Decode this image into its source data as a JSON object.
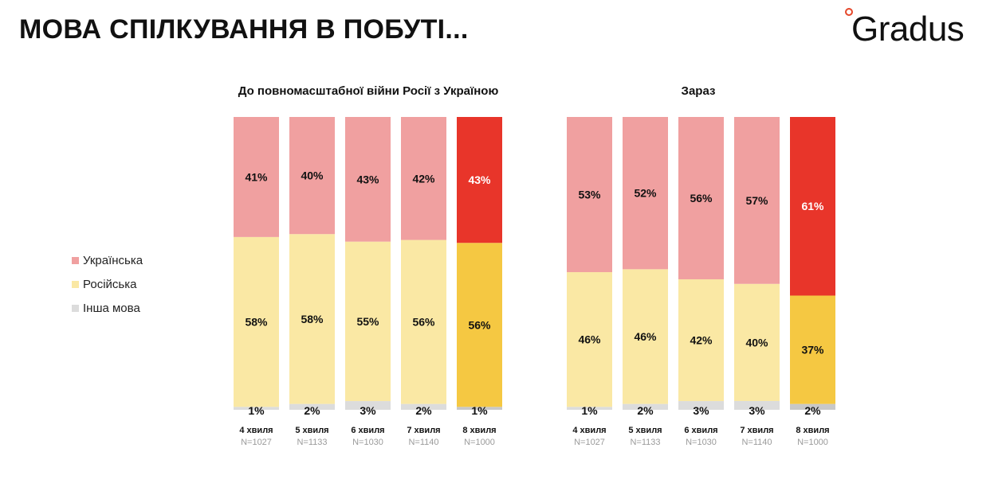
{
  "page": {
    "title": "МОВА СПІЛКУВАННЯ В ПОБУТІ...",
    "logo": "Gradus"
  },
  "legend": [
    {
      "label": "Українська",
      "color": "#f0a0a0"
    },
    {
      "label": "Російська",
      "color": "#fae8a4"
    },
    {
      "label": "Інша мова",
      "color": "#dcdcdc"
    }
  ],
  "chart_data": [
    {
      "type": "bar",
      "stacked": true,
      "title": "До повномасштабної війни Росії з Україною",
      "categories": [
        "4 хвиля",
        "5 хвиля",
        "6 хвиля",
        "7 хвиля",
        "8 хвиля"
      ],
      "sample_sizes": [
        "N=1027",
        "N=1133",
        "N=1030",
        "N=1140",
        "N=1000"
      ],
      "series": [
        {
          "name": "Українська",
          "values": [
            41,
            40,
            43,
            42,
            43
          ],
          "labels": [
            "41%",
            "40%",
            "43%",
            "42%",
            "43%"
          ],
          "color": "#f0a0a0",
          "highlight_color": "#e8352a"
        },
        {
          "name": "Російська",
          "values": [
            58,
            58,
            55,
            56,
            56
          ],
          "labels": [
            "58%",
            "58%",
            "55%",
            "56%",
            "56%"
          ],
          "color": "#fae8a4",
          "highlight_color": "#f5c842"
        },
        {
          "name": "Інша мова",
          "values": [
            1,
            2,
            3,
            2,
            1
          ],
          "labels": [
            "1%",
            "2%",
            "3%",
            "2%",
            "1%"
          ],
          "color": "#dcdcdc",
          "highlight_color": "#c8c8c8"
        }
      ],
      "highlight_index": 4
    },
    {
      "type": "bar",
      "stacked": true,
      "title": "Зараз",
      "categories": [
        "4 хвиля",
        "5 хвиля",
        "6 хвиля",
        "7 хвиля",
        "8 хвиля"
      ],
      "sample_sizes": [
        "N=1027",
        "N=1133",
        "N=1030",
        "N=1140",
        "N=1000"
      ],
      "series": [
        {
          "name": "Українська",
          "values": [
            53,
            52,
            56,
            57,
            61
          ],
          "labels": [
            "53%",
            "52%",
            "56%",
            "57%",
            "61%"
          ],
          "color": "#f0a0a0",
          "highlight_color": "#e8352a"
        },
        {
          "name": "Російська",
          "values": [
            46,
            46,
            42,
            40,
            37
          ],
          "labels": [
            "46%",
            "46%",
            "42%",
            "40%",
            "37%"
          ],
          "color": "#fae8a4",
          "highlight_color": "#f5c842"
        },
        {
          "name": "Інша мова",
          "values": [
            1,
            2,
            3,
            3,
            2
          ],
          "labels": [
            "1%",
            "2%",
            "3%",
            "3%",
            "2%"
          ],
          "color": "#dcdcdc",
          "highlight_color": "#c8c8c8"
        }
      ],
      "highlight_index": 4
    }
  ]
}
